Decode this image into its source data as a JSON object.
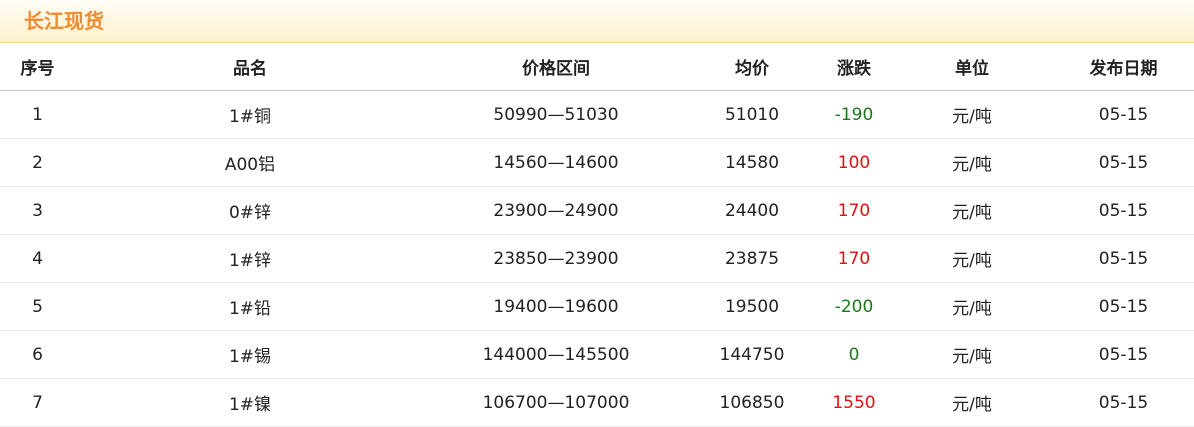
{
  "title": "长江现货",
  "colors": {
    "title": "#f08a2c",
    "up": "#e01010",
    "down": "#1a7a1a"
  },
  "headers": [
    "序号",
    "品名",
    "价格区间",
    "均价",
    "涨跌",
    "单位",
    "发布日期"
  ],
  "rows": [
    {
      "no": "1",
      "name": "1#铜",
      "range": "50990—51030",
      "avg": "51010",
      "change": "-190",
      "unit": "元/吨",
      "date": "05-15"
    },
    {
      "no": "2",
      "name": "A00铝",
      "range": "14560—14600",
      "avg": "14580",
      "change": "100",
      "unit": "元/吨",
      "date": "05-15"
    },
    {
      "no": "3",
      "name": "0#锌",
      "range": "23900—24900",
      "avg": "24400",
      "change": "170",
      "unit": "元/吨",
      "date": "05-15"
    },
    {
      "no": "4",
      "name": "1#锌",
      "range": "23850—23900",
      "avg": "23875",
      "change": "170",
      "unit": "元/吨",
      "date": "05-15"
    },
    {
      "no": "5",
      "name": "1#铅",
      "range": "19400—19600",
      "avg": "19500",
      "change": "-200",
      "unit": "元/吨",
      "date": "05-15"
    },
    {
      "no": "6",
      "name": "1#锡",
      "range": "144000—145500",
      "avg": "144750",
      "change": "0",
      "unit": "元/吨",
      "date": "05-15"
    },
    {
      "no": "7",
      "name": "1#镍",
      "range": "106700—107000",
      "avg": "106850",
      "change": "1550",
      "unit": "元/吨",
      "date": "05-15"
    }
  ]
}
